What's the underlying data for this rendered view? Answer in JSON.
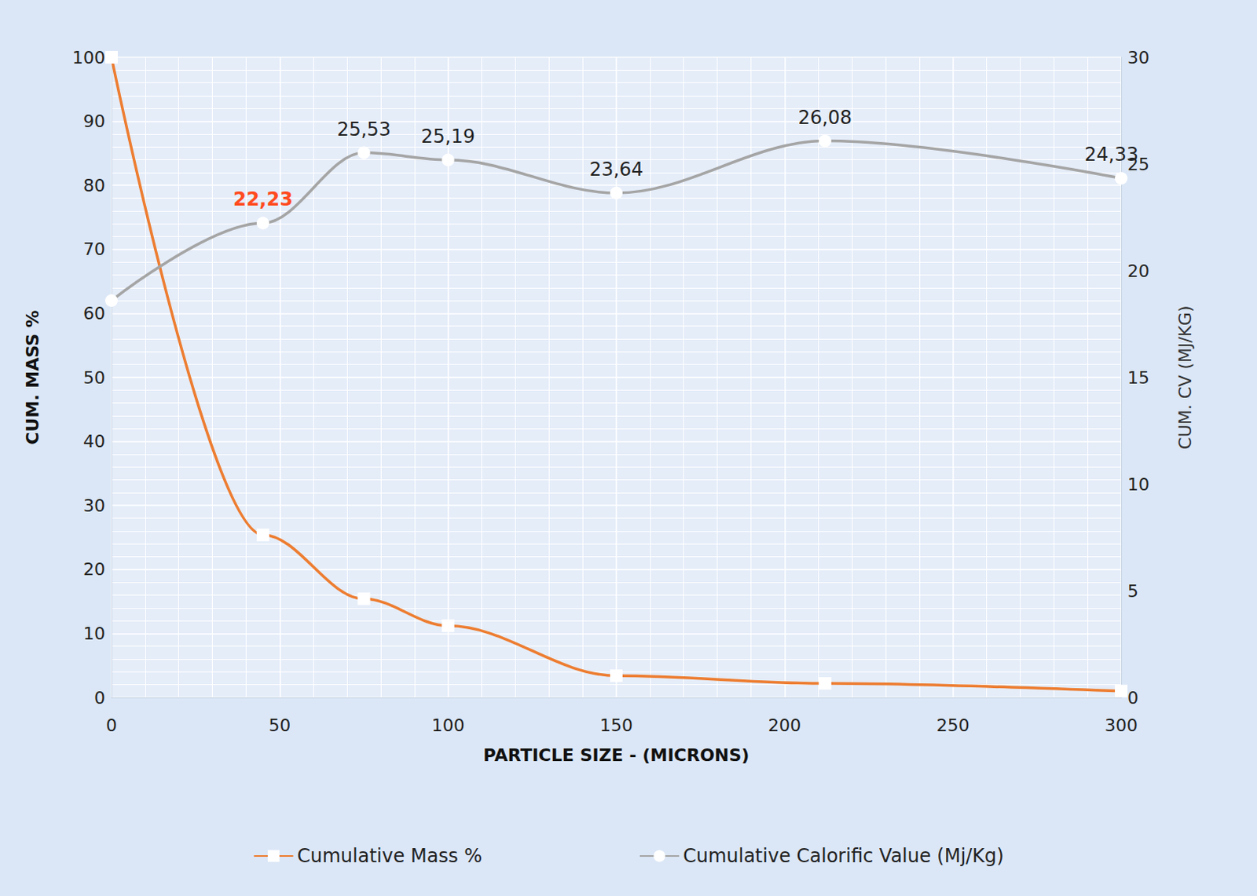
{
  "chart_data": {
    "type": "line",
    "xlabel": "PARTICLE SIZE - (MICRONS)",
    "ylabel": "CUM. MASS %",
    "y2label": "CUM. CV (MJ/KG)",
    "x": [
      0,
      45,
      75,
      100,
      150,
      212,
      300
    ],
    "series": [
      {
        "name": "Cumulative Mass %",
        "color": "#ed7d31",
        "marker": "square",
        "values": [
          100,
          25.4,
          15.4,
          11.2,
          3.4,
          2.2,
          1.0
        ]
      },
      {
        "name": "Cumulative Calorific Value (Mj/Kg)",
        "color": "#a5a5a5",
        "marker": "circle",
        "axis": "y2",
        "data_labels": true,
        "values": [
          18.6,
          22.23,
          25.53,
          25.19,
          23.64,
          26.08,
          24.33
        ],
        "value_labels": [
          null,
          "22,23",
          "25,53",
          "25,19",
          "23,64",
          "26,08",
          "24,33"
        ]
      }
    ],
    "xlim": [
      0,
      300
    ],
    "xticks": [
      0,
      50,
      100,
      150,
      200,
      250,
      300
    ],
    "ylim": [
      0,
      100
    ],
    "yticks": [
      0,
      10,
      20,
      30,
      40,
      50,
      60,
      70,
      80,
      90,
      100
    ],
    "y2lim": [
      0,
      30
    ],
    "y2ticks": [
      0,
      5,
      10,
      15,
      20,
      25,
      30
    ],
    "grid": true,
    "legend": "bottom"
  }
}
